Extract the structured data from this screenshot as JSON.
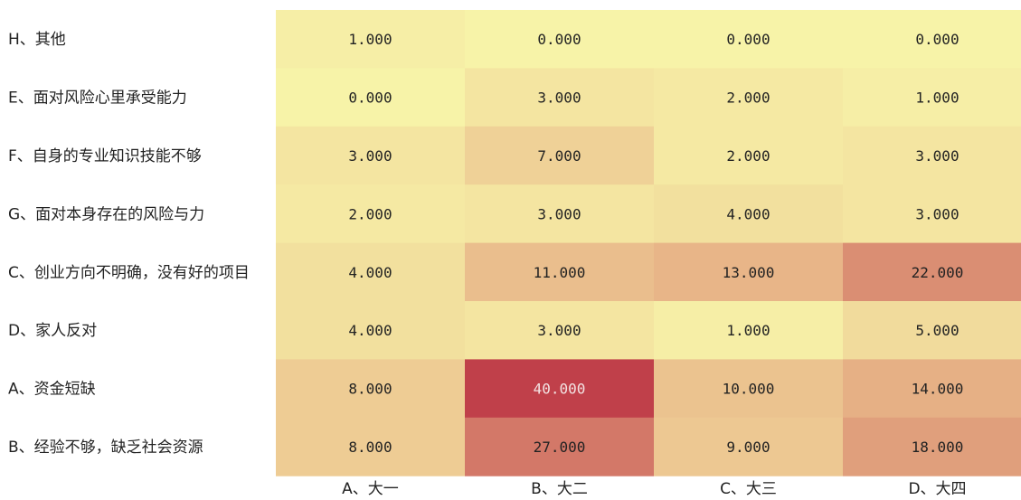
{
  "chart_data": {
    "type": "heatmap",
    "title": "",
    "xlabel": "",
    "ylabel": "",
    "categories_x": [
      "A、大一",
      "B、大二",
      "C、大三",
      "D、大四"
    ],
    "categories_y": [
      "H、其他",
      "E、面对风险心里承受能力",
      "F、自身的专业知识技能不够",
      "G、面对本身存在的风险与力",
      "C、创业方向不明确，没有好的项目",
      "D、家人反对",
      "A、资金短缺",
      "B、经验不够，缺乏社会资源"
    ],
    "values": [
      [
        1,
        0,
        0,
        0
      ],
      [
        0,
        3,
        2,
        1
      ],
      [
        3,
        7,
        2,
        3
      ],
      [
        2,
        3,
        4,
        3
      ],
      [
        4,
        11,
        13,
        22
      ],
      [
        4,
        3,
        1,
        5
      ],
      [
        8,
        40,
        10,
        14
      ],
      [
        8,
        27,
        9,
        18
      ]
    ],
    "value_labels": [
      [
        "1.000",
        "0.000",
        "0.000",
        "0.000"
      ],
      [
        "0.000",
        "3.000",
        "2.000",
        "1.000"
      ],
      [
        "3.000",
        "7.000",
        "2.000",
        "3.000"
      ],
      [
        "2.000",
        "3.000",
        "4.000",
        "3.000"
      ],
      [
        "4.000",
        "11.000",
        "13.000",
        "22.000"
      ],
      [
        "4.000",
        "3.000",
        "1.000",
        "5.000"
      ],
      [
        "8.000",
        "40.000",
        "10.000",
        "14.000"
      ],
      [
        "8.000",
        "27.000",
        "9.000",
        "18.000"
      ]
    ],
    "color_scale": {
      "low": "#f7f3a8",
      "mid": "#e9b98a",
      "high": "#c0404a"
    },
    "value_range": [
      0,
      40
    ],
    "legend": "none",
    "grid": false
  }
}
